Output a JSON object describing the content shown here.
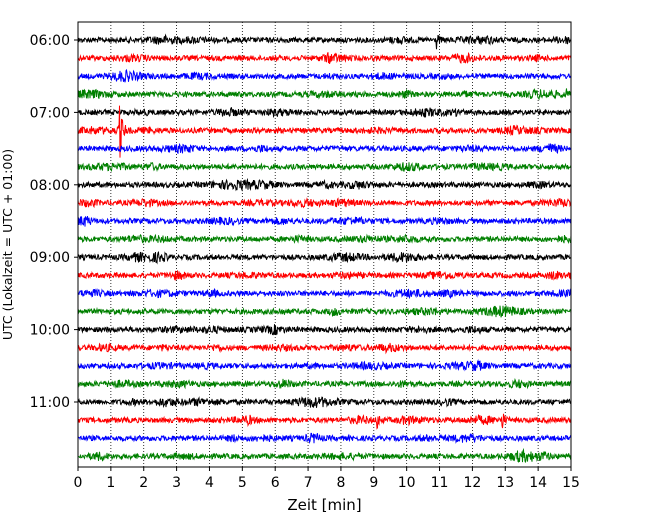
{
  "chart_data": {
    "type": "line",
    "title": "",
    "xlabel": "Zeit  [min]",
    "ylabel": "UTC (Lokalzeit = UTC + 01:00)",
    "xlim": [
      0,
      15
    ],
    "x_ticks": [
      0,
      1,
      2,
      3,
      4,
      5,
      6,
      7,
      8,
      9,
      10,
      11,
      12,
      13,
      14,
      15
    ],
    "x_grid": "dotted vertical at each minute",
    "y_tick_labels": [
      "06:00",
      "07:00",
      "08:00",
      "09:00",
      "10:00",
      "11:00"
    ],
    "y_tick_trace_index": [
      0,
      4,
      8,
      12,
      16,
      20
    ],
    "trace_minutes": 15,
    "trace_start_times": [
      "06:00",
      "06:15",
      "06:30",
      "06:45",
      "07:00",
      "07:15",
      "07:30",
      "07:45",
      "08:00",
      "08:15",
      "08:30",
      "08:45",
      "09:00",
      "09:15",
      "09:30",
      "09:45",
      "10:00",
      "10:15",
      "10:30",
      "10:45",
      "11:00",
      "11:15",
      "11:30",
      "11:45"
    ],
    "trace_color_cycle": [
      "#000000",
      "#ff0000",
      "#0000ff",
      "#008000"
    ],
    "events": [
      {
        "trace": 0,
        "minute": 10.9,
        "amplitude": "medium"
      },
      {
        "trace": 3,
        "minute": 14.8,
        "amplitude": "medium"
      },
      {
        "trace": 5,
        "minute": 1.28,
        "amplitude": "large"
      },
      {
        "trace": 21,
        "minute": 9.1,
        "amplitude": "medium"
      },
      {
        "trace": 21,
        "minute": 12.9,
        "amplitude": "medium"
      }
    ]
  }
}
